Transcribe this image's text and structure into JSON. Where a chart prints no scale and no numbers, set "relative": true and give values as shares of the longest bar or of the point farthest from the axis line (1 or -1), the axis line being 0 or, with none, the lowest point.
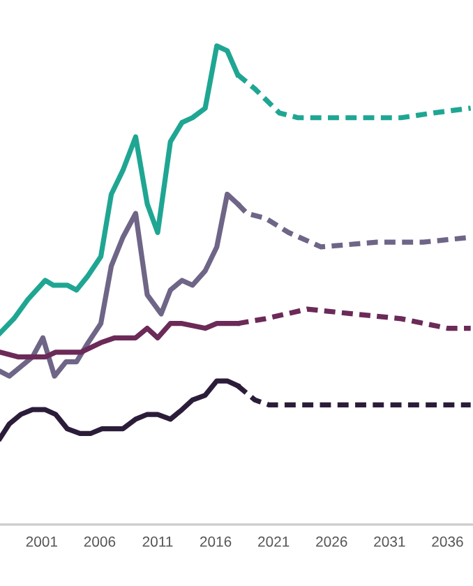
{
  "chart_data": {
    "type": "line",
    "relative": true,
    "xlim": [
      1997.4,
      2038.2
    ],
    "xticks": [
      2001,
      2006,
      2011,
      2016,
      2021,
      2026,
      2031,
      2036
    ],
    "marker": "none",
    "legend": false,
    "series": [
      {
        "color": "#1fa693",
        "line_style": "solid",
        "x": [
          1997.4,
          1998.6,
          1999.8,
          2001.3,
          2002.0,
          2003.2,
          2004.0,
          2005.0,
          2006.1,
          2007.0,
          2008.0,
          2009.1,
          2010.1,
          2011.0,
          2012.1,
          2013.1,
          2014.0,
          2015.1,
          2016.1,
          2017.0,
          2017.9
        ],
        "values": [
          0.4,
          0.43,
          0.47,
          0.51,
          0.5,
          0.5,
          0.49,
          0.52,
          0.56,
          0.69,
          0.74,
          0.81,
          0.67,
          0.61,
          0.8,
          0.84,
          0.85,
          0.87,
          1.0,
          0.99,
          0.94
        ]
      },
      {
        "color": "#1fa693",
        "line_style": "dashed",
        "x": [
          2017.9,
          2019.4,
          2021.5,
          2023.1,
          2027.9,
          2032.0,
          2034.8,
          2038.0
        ],
        "values": [
          0.94,
          0.91,
          0.86,
          0.85,
          0.85,
          0.85,
          0.86,
          0.87
        ]
      },
      {
        "color": "#6e6587",
        "line_style": "solid",
        "x": [
          1997.4,
          1998.2,
          1999.2,
          2000.2,
          2001.1,
          2002.1,
          2003.1,
          2004.0,
          2005.0,
          2006.1,
          2007.0,
          2008.0,
          2009.1,
          2010.1,
          2011.3,
          2012.1,
          2013.1,
          2014.0,
          2015.1,
          2016.1,
          2017.0,
          2017.9
        ],
        "values": [
          0.32,
          0.31,
          0.33,
          0.35,
          0.39,
          0.31,
          0.34,
          0.34,
          0.38,
          0.42,
          0.54,
          0.6,
          0.65,
          0.48,
          0.44,
          0.49,
          0.51,
          0.5,
          0.53,
          0.58,
          0.69,
          0.67
        ]
      },
      {
        "color": "#6e6587",
        "line_style": "dashed",
        "x": [
          2017.9,
          2018.7,
          2020.3,
          2022.3,
          2025.1,
          2029.9,
          2033.9,
          2038.0
        ],
        "values": [
          0.67,
          0.65,
          0.64,
          0.61,
          0.58,
          0.59,
          0.59,
          0.6
        ]
      },
      {
        "color": "#6b2a58",
        "line_style": "solid",
        "x": [
          1997.4,
          1999.0,
          2000.2,
          2001.3,
          2002.2,
          2003.2,
          2004.4,
          2006.1,
          2007.3,
          2009.1,
          2010.1,
          2011.0,
          2012.1,
          2013.1,
          2015.1,
          2016.1,
          2017.0,
          2017.9
        ],
        "values": [
          0.36,
          0.35,
          0.35,
          0.35,
          0.36,
          0.36,
          0.36,
          0.38,
          0.39,
          0.39,
          0.41,
          0.39,
          0.42,
          0.42,
          0.41,
          0.42,
          0.42,
          0.42
        ]
      },
      {
        "color": "#6b2a58",
        "line_style": "dashed",
        "x": [
          2017.9,
          2020.3,
          2023.9,
          2027.9,
          2032.0,
          2036.0,
          2038.0
        ],
        "values": [
          0.42,
          0.43,
          0.45,
          0.44,
          0.43,
          0.41,
          0.41
        ]
      },
      {
        "color": "#2b1d3a",
        "line_style": "solid",
        "x": [
          1997.4,
          1998.2,
          1999.2,
          2000.2,
          2001.3,
          2002.2,
          2003.2,
          2004.3,
          2005.2,
          2006.2,
          2008.0,
          2009.1,
          2010.1,
          2011.0,
          2012.1,
          2013.1,
          2014.0,
          2015.1,
          2016.1,
          2017.0,
          2017.9
        ],
        "values": [
          0.18,
          0.21,
          0.23,
          0.24,
          0.24,
          0.23,
          0.2,
          0.19,
          0.19,
          0.2,
          0.2,
          0.22,
          0.23,
          0.23,
          0.22,
          0.24,
          0.26,
          0.27,
          0.3,
          0.3,
          0.29
        ]
      },
      {
        "color": "#2b1d3a",
        "line_style": "dashed",
        "x": [
          2017.9,
          2019.4,
          2020.6,
          2038.0
        ],
        "values": [
          0.29,
          0.26,
          0.25,
          0.25
        ]
      }
    ]
  }
}
